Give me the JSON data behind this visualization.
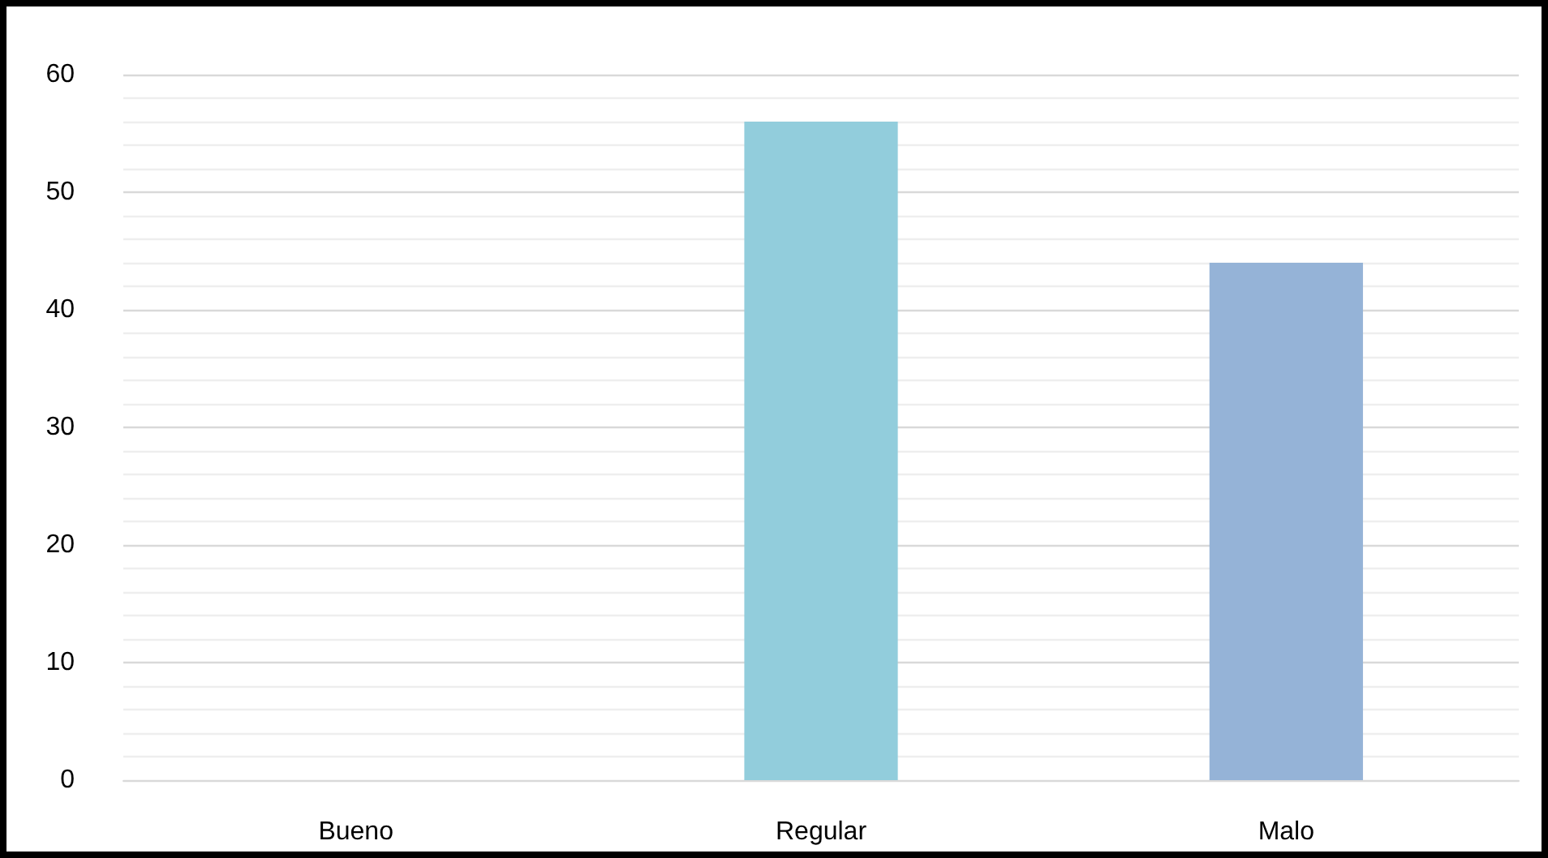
{
  "chart_data": {
    "type": "bar",
    "categories": [
      "Bueno",
      "Regular",
      "Malo"
    ],
    "values": [
      0,
      56,
      44
    ],
    "colors": [
      null,
      "#92cddc",
      "#95b3d7"
    ],
    "ylim": [
      0,
      60
    ],
    "yticks": [
      0,
      10,
      20,
      30,
      40,
      50,
      60
    ],
    "grid": "y"
  }
}
